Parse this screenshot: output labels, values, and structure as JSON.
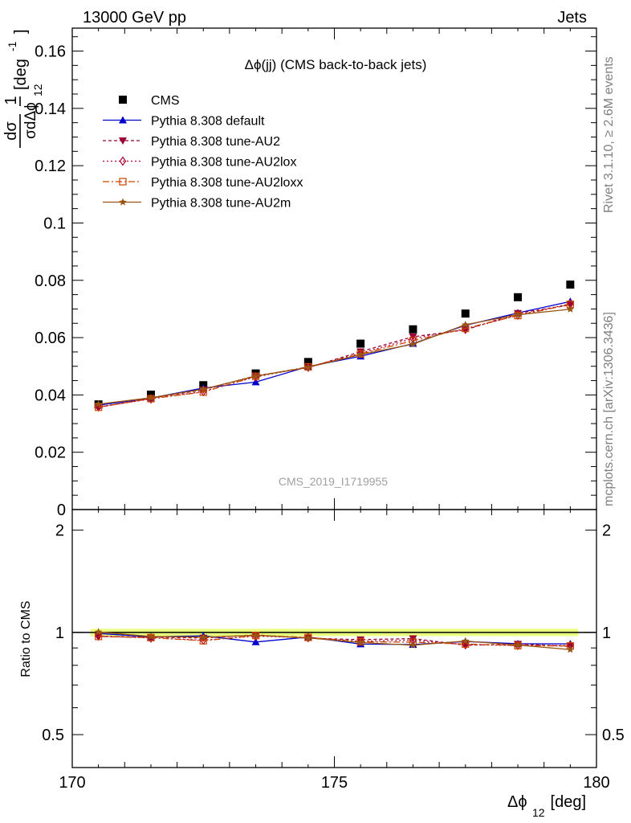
{
  "header": {
    "left": "13000 GeV pp",
    "right": "Jets"
  },
  "plot_title": "Δϕ(jj) (CMS back-to-back jets)",
  "watermark": "CMS_2019_I1719955",
  "side_text": {
    "rivet": "Rivet 3.1.10, ≥ 2.6M events",
    "mcplots": "mcplots.cern.ch [arXiv:1306.3436]"
  },
  "y_axis_label": {
    "prefix": "1",
    "numerator": "dσ",
    "denominator": "σdΔϕ",
    "sub": "12",
    "unit": "[deg",
    "unit_exp": "-1",
    "unit_close": "]"
  },
  "ratio_axis_label": "Ratio to CMS",
  "x_axis_label": {
    "main": "Δϕ",
    "sub": "12",
    "unit": " [deg]"
  },
  "legend": [
    {
      "label": "CMS",
      "color": "#000000",
      "marker": "square",
      "dash": "none"
    },
    {
      "label": "Pythia 8.308 default",
      "color": "#0000cc",
      "marker": "triangle-up",
      "dash": "solid"
    },
    {
      "label": "Pythia 8.308 tune-AU2",
      "color": "#990033",
      "marker": "triangle-down",
      "dash": "4,3"
    },
    {
      "label": "Pythia 8.308 tune-AU2lox",
      "color": "#aa0033",
      "marker": "diamond-open",
      "dash": "2,3"
    },
    {
      "label": "Pythia 8.308 tune-AU2loxx",
      "color": "#cc4400",
      "marker": "square-open",
      "dash": "8,3,2,3"
    },
    {
      "label": "Pythia 8.308 tune-AU2m",
      "color": "#995511",
      "marker": "star",
      "dash": "solid"
    }
  ],
  "chart_data": [
    {
      "type": "line",
      "panel": "main",
      "x": [
        170.5,
        171.5,
        172.5,
        173.5,
        174.5,
        175.5,
        176.5,
        177.5,
        178.5,
        179.5
      ],
      "xlim": [
        170,
        180
      ],
      "ylim": [
        0,
        0.168
      ],
      "yticks": [
        0,
        0.02,
        0.04,
        0.06,
        0.08,
        0.1,
        0.12,
        0.14,
        0.16
      ],
      "ytick_labels": [
        "0",
        "0.02",
        "0.04",
        "0.06",
        "0.08",
        "0.1",
        "0.12",
        "0.14",
        "0.16"
      ],
      "series": [
        {
          "name": "CMS",
          "values": [
            0.0367,
            0.0401,
            0.0434,
            0.0475,
            0.0515,
            0.0579,
            0.0629,
            0.0684,
            0.0741,
            0.0785
          ]
        },
        {
          "name": "Pythia 8.308 default",
          "values": [
            0.0364,
            0.0389,
            0.0424,
            0.0445,
            0.0499,
            0.0535,
            0.0579,
            0.0643,
            0.0686,
            0.0726
          ]
        },
        {
          "name": "Pythia 8.308 tune-AU2",
          "values": [
            0.0357,
            0.0388,
            0.0418,
            0.0467,
            0.0495,
            0.0551,
            0.0603,
            0.0627,
            0.0685,
            0.0714
          ]
        },
        {
          "name": "Pythia 8.308 tune-AU2lox",
          "values": [
            0.0358,
            0.0386,
            0.0412,
            0.0463,
            0.0497,
            0.0545,
            0.0597,
            0.0629,
            0.0679,
            0.0718
          ]
        },
        {
          "name": "Pythia 8.308 tune-AU2loxx",
          "values": [
            0.0357,
            0.0387,
            0.041,
            0.0465,
            0.0498,
            0.0543,
            0.0589,
            0.0632,
            0.0677,
            0.0716
          ]
        },
        {
          "name": "Pythia 8.308 tune-AU2m",
          "values": [
            0.0368,
            0.039,
            0.042,
            0.0466,
            0.0496,
            0.0541,
            0.0577,
            0.0645,
            0.068,
            0.0699
          ]
        }
      ]
    },
    {
      "type": "line",
      "panel": "ratio",
      "x": [
        170.5,
        171.5,
        172.5,
        173.5,
        174.5,
        175.5,
        176.5,
        177.5,
        178.5,
        179.5
      ],
      "xlim": [
        170,
        180
      ],
      "xticks": [
        170,
        175,
        180
      ],
      "xtick_labels": [
        "170",
        "175",
        "180"
      ],
      "ylim": [
        0.4,
        2.3
      ],
      "ylog": true,
      "yticks": [
        0.5,
        1,
        2
      ],
      "ytick_labels": [
        "0.5",
        "1",
        "2"
      ],
      "series": [
        {
          "name": "Pythia 8.308 default",
          "values": [
            0.993,
            0.97,
            0.977,
            0.937,
            0.969,
            0.924,
            0.921,
            0.94,
            0.926,
            0.925
          ]
        },
        {
          "name": "Pythia 8.308 tune-AU2",
          "values": [
            0.973,
            0.968,
            0.963,
            0.983,
            0.961,
            0.952,
            0.959,
            0.917,
            0.924,
            0.91
          ]
        },
        {
          "name": "Pythia 8.308 tune-AU2lox",
          "values": [
            0.976,
            0.963,
            0.949,
            0.975,
            0.965,
            0.941,
            0.949,
            0.92,
            0.916,
            0.915
          ]
        },
        {
          "name": "Pythia 8.308 tune-AU2loxx",
          "values": [
            0.973,
            0.965,
            0.945,
            0.979,
            0.967,
            0.938,
            0.936,
            0.924,
            0.914,
            0.912
          ]
        },
        {
          "name": "Pythia 8.308 tune-AU2m",
          "values": [
            1.003,
            0.973,
            0.968,
            0.981,
            0.963,
            0.934,
            0.917,
            0.943,
            0.918,
            0.89
          ]
        }
      ]
    }
  ]
}
